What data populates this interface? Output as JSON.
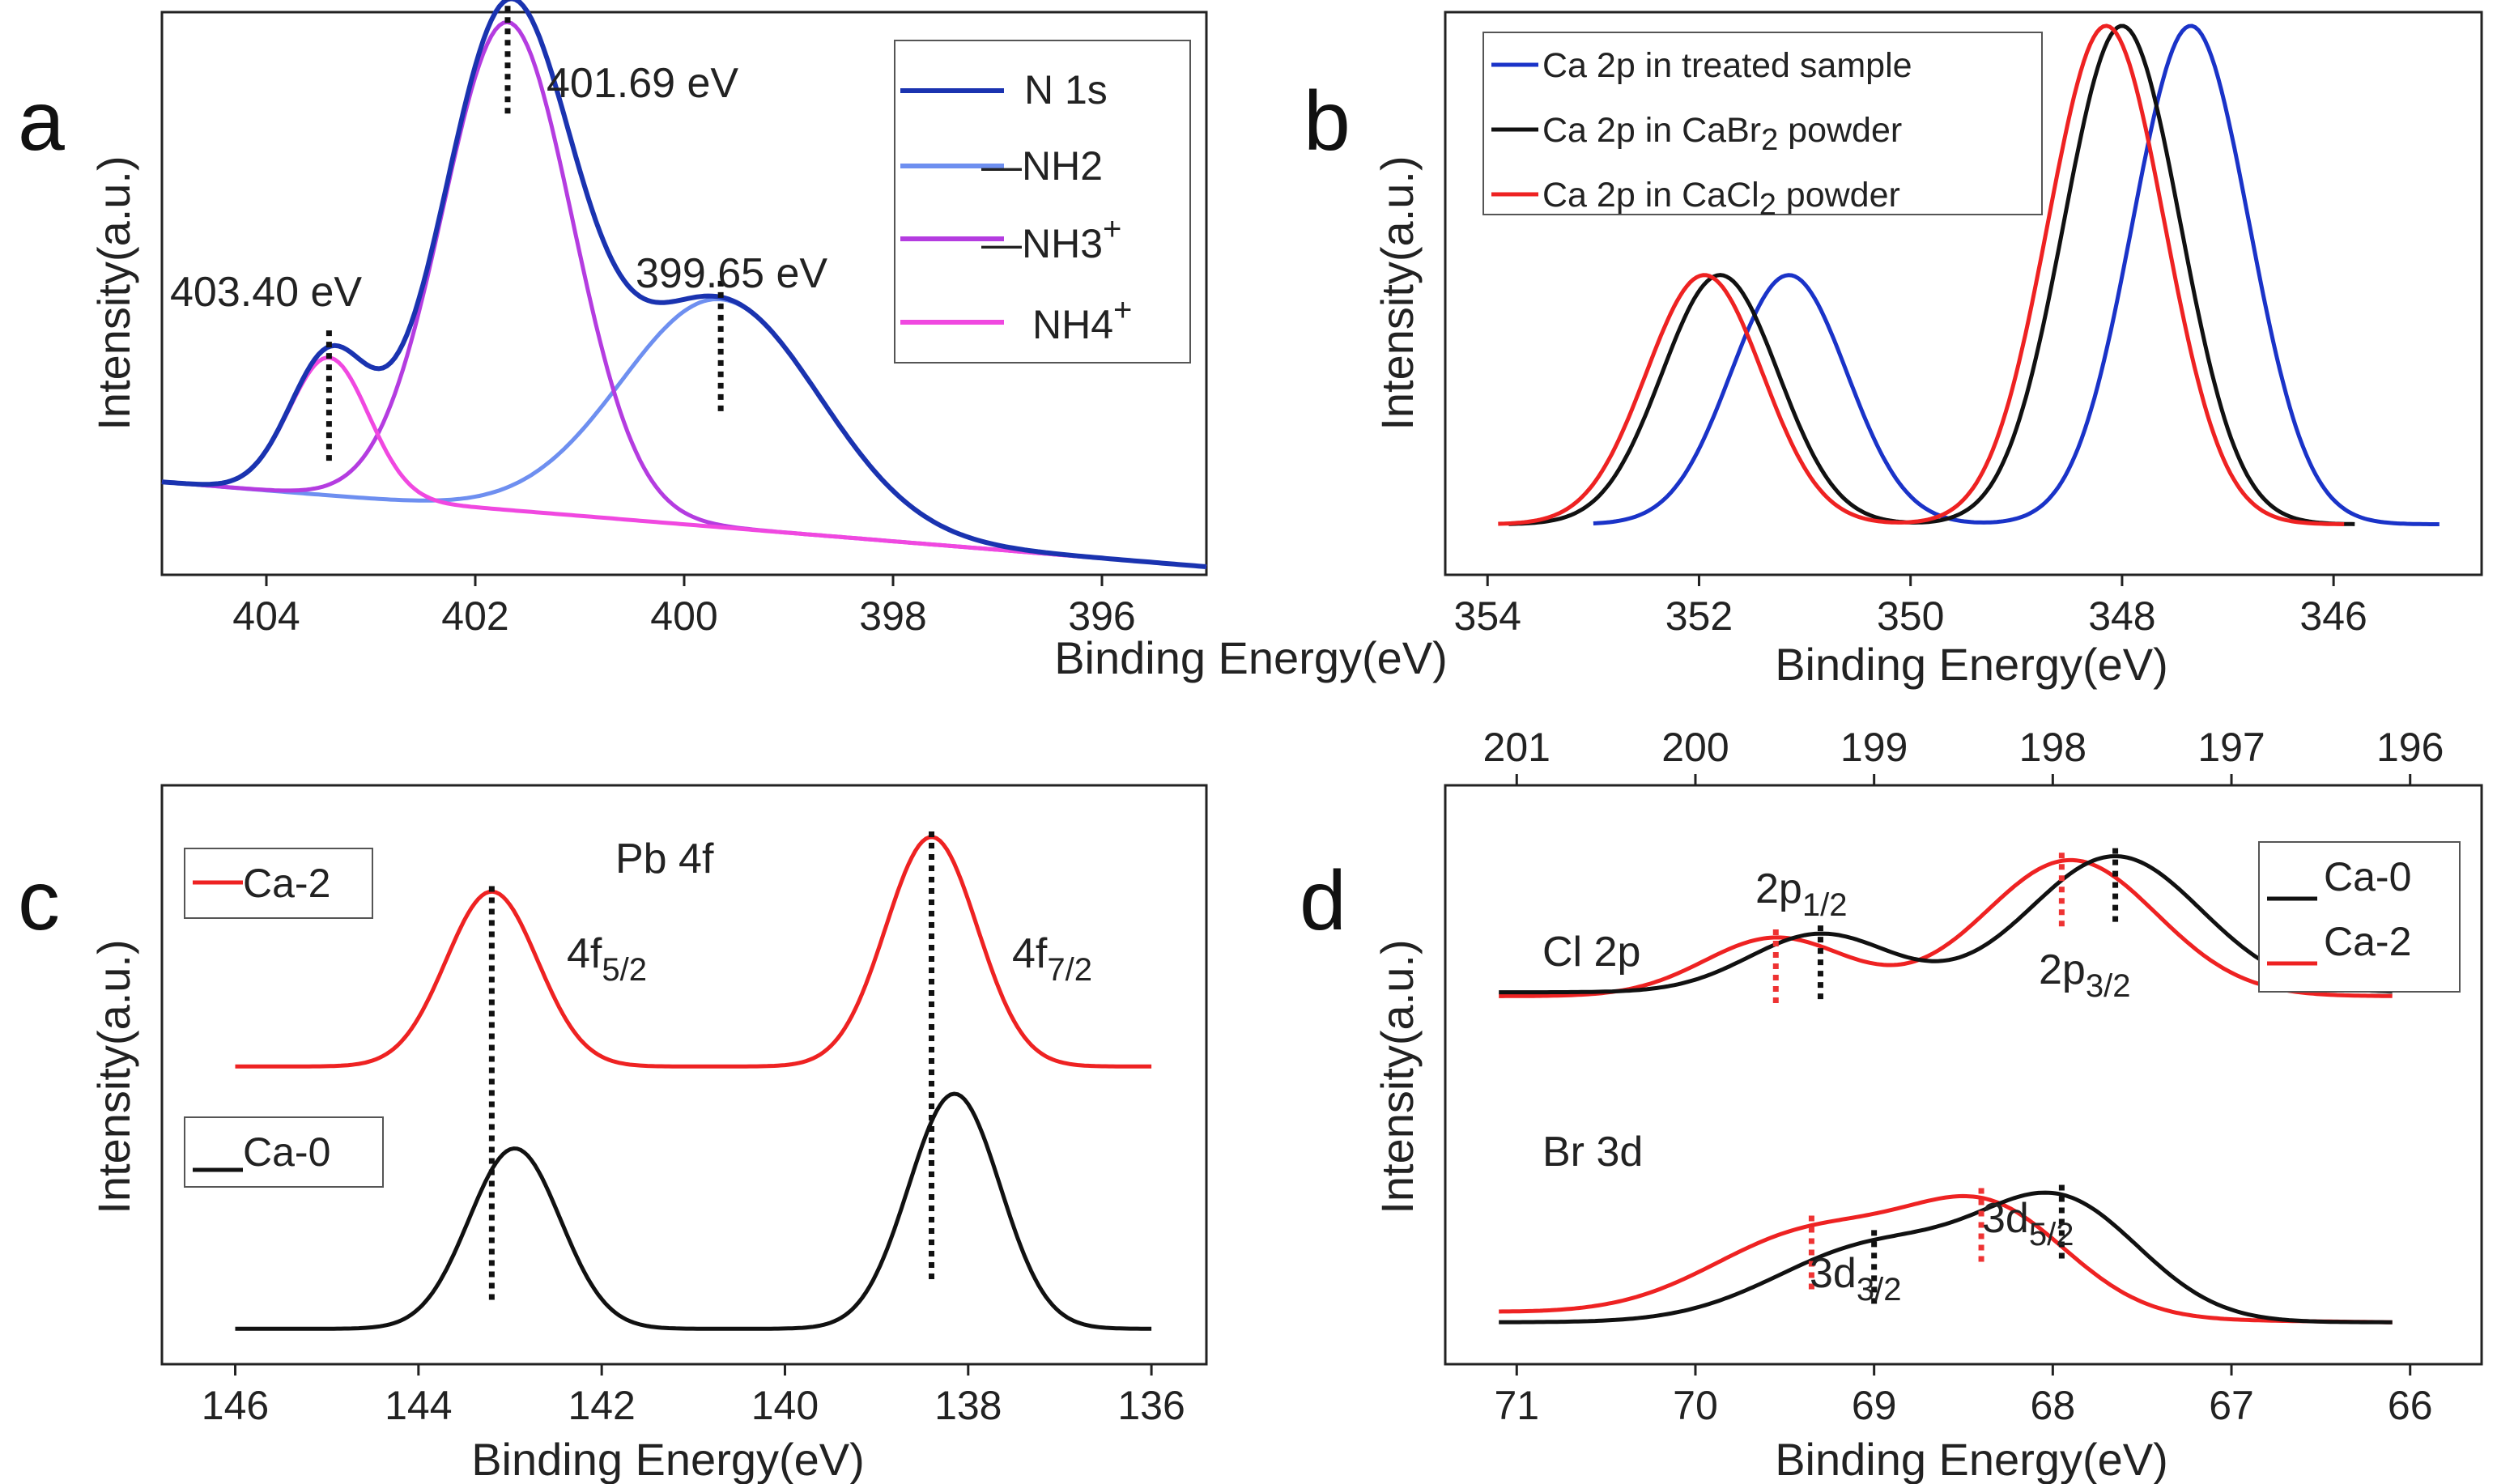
{
  "chart_data": [
    {
      "panel": "a",
      "type": "line",
      "xlabel": "Binding Energy(eV)",
      "ylabel": "Intensity(a.u.)",
      "xlim": [
        405,
        395
      ],
      "xticks": [
        404,
        402,
        400,
        398,
        396
      ],
      "legend_position": "top-right",
      "legend": [
        "N 1s",
        "—NH2",
        "—NH3+",
        "NH4+"
      ],
      "annotations": [
        {
          "text": "401.69 eV",
          "x": 401.69
        },
        {
          "text": "403.40 eV",
          "x": 403.4
        },
        {
          "text": "399.65 eV",
          "x": 399.65
        }
      ],
      "series": [
        {
          "name": "N 1s",
          "color": "#1a33b0",
          "peaks": [
            {
              "center": 403.4,
              "height": 0.26,
              "sigma": 0.38
            },
            {
              "center": 401.69,
              "height": 0.92,
              "sigma": 0.62
            },
            {
              "center": 399.65,
              "height": 0.43,
              "sigma": 0.95
            }
          ],
          "baseline": [
            0.16,
            0.0
          ]
        },
        {
          "name": "—NH2",
          "color": "#6e8ff0",
          "peaks": [
            {
              "center": 399.65,
              "height": 0.43,
              "sigma": 0.95
            }
          ],
          "baseline": [
            0.16,
            0.0
          ]
        },
        {
          "name": "—NH3+",
          "color": "#b43ce0",
          "peaks": [
            {
              "center": 401.69,
              "height": 0.92,
              "sigma": 0.62
            }
          ],
          "baseline": [
            0.16,
            0.0
          ]
        },
        {
          "name": "NH4+",
          "color": "#f048e0",
          "peaks": [
            {
              "center": 403.4,
              "height": 0.26,
              "sigma": 0.38
            }
          ],
          "baseline": [
            0.16,
            0.0
          ]
        }
      ]
    },
    {
      "panel": "b",
      "type": "line",
      "xlabel": "Binding Energy(eV)",
      "ylabel": "Intensity(a.u.)",
      "xlim": [
        354.4,
        344.6
      ],
      "xticks": [
        354,
        352,
        350,
        348,
        346
      ],
      "legend_position": "top-left",
      "legend": [
        {
          "color": "#1a33c8",
          "parts": [
            {
              "t": "Ca 2p in treated sample"
            }
          ]
        },
        {
          "color": "#111111",
          "parts": [
            {
              "t": "Ca 2p in CaBr"
            },
            {
              "t": "2",
              "sub": true
            },
            {
              "t": " powder"
            }
          ]
        },
        {
          "color": "#ee2222",
          "parts": [
            {
              "t": "Ca 2p in CaCl"
            },
            {
              "t": "2",
              "sub": true
            },
            {
              "t": " powder"
            }
          ]
        }
      ],
      "series": [
        {
          "name": "Ca 2p in treated sample",
          "color": "#1a33c8",
          "x_range": [
            353.0,
            345.0
          ],
          "peaks": [
            {
              "center": 351.15,
              "height": 0.47,
              "sigma": 0.55
            },
            {
              "center": 347.35,
              "height": 0.94,
              "sigma": 0.55
            }
          ],
          "baseline": [
            0.08,
            0.08
          ]
        },
        {
          "name": "Ca 2p in CaBr2 powder",
          "color": "#111111",
          "x_range": [
            353.8,
            345.8
          ],
          "peaks": [
            {
              "center": 351.8,
              "height": 0.47,
              "sigma": 0.55
            },
            {
              "center": 348.0,
              "height": 0.94,
              "sigma": 0.55
            }
          ],
          "baseline": [
            0.08,
            0.08
          ]
        },
        {
          "name": "Ca 2p in CaCl2 powder",
          "color": "#ee2222",
          "x_range": [
            353.9,
            345.9
          ],
          "peaks": [
            {
              "center": 351.95,
              "height": 0.47,
              "sigma": 0.55
            },
            {
              "center": 348.15,
              "height": 0.94,
              "sigma": 0.55
            }
          ],
          "baseline": [
            0.08,
            0.08
          ]
        }
      ]
    },
    {
      "panel": "c",
      "type": "line",
      "title": "Pb 4f",
      "xlabel": "Binding Energy(eV)",
      "ylabel": "Intensity(a.u.)",
      "xlim": [
        146.8,
        135.4
      ],
      "xticks": [
        146,
        144,
        142,
        140,
        138,
        136
      ],
      "legend_position": "left",
      "legend": [
        "Ca-2",
        "Ca-0"
      ],
      "annotations": [
        {
          "text": "4f",
          "sub": "5/2",
          "x": 143.1
        },
        {
          "text": "4f",
          "sub": "7/2",
          "x": 138.4
        }
      ],
      "series": [
        {
          "name": "Ca-2",
          "color": "#ee2222",
          "x_range": [
            146,
            136
          ],
          "peaks": [
            {
              "center": 143.2,
              "height": 0.32,
              "sigma": 0.5
            },
            {
              "center": 138.4,
              "height": 0.42,
              "sigma": 0.5
            }
          ],
          "baseline": [
            0.53,
            0.53
          ]
        },
        {
          "name": "Ca-0",
          "color": "#111111",
          "x_range": [
            146,
            136
          ],
          "peaks": [
            {
              "center": 142.95,
              "height": 0.33,
              "sigma": 0.5
            },
            {
              "center": 138.15,
              "height": 0.43,
              "sigma": 0.5
            }
          ],
          "baseline": [
            0.05,
            0.05
          ]
        }
      ]
    },
    {
      "panel": "d",
      "type": "line",
      "xlabel": "Binding Energy(eV)",
      "ylabel": "Intensity(a.u.)",
      "xlim": [
        71.4,
        65.6
      ],
      "xticks": [
        71,
        70,
        69,
        68,
        67,
        66
      ],
      "x2lim": [
        201.4,
        195.6
      ],
      "x2ticks": [
        201,
        200,
        199,
        198,
        197,
        196
      ],
      "legend_position": "top-right",
      "legend": [
        "Ca-0",
        "Ca-2"
      ],
      "labels": [
        "Cl 2p",
        "Br 3d"
      ],
      "annotations": [
        {
          "text": "2p",
          "sub": "1/2",
          "x": 199.4
        },
        {
          "text": "2p",
          "sub": "3/2",
          "x": 197.7
        },
        {
          "text": "3d",
          "sub": "3/2",
          "x": 69.0
        },
        {
          "text": "3d",
          "sub": "5/2",
          "x": 68.0
        }
      ],
      "series": [
        {
          "name": "Ca-0 Cl 2p",
          "color": "#111111",
          "x_range": [
            201.1,
            196.1
          ],
          "peaks": [
            {
              "center": 199.3,
              "height": 0.15,
              "sigma": 0.4
            },
            {
              "center": 197.65,
              "height": 0.35,
              "sigma": 0.48
            }
          ],
          "baseline": [
            0.53,
            0.53
          ]
        },
        {
          "name": "Ca-2 Cl 2p",
          "color": "#ee2222",
          "x_range": [
            201.1,
            196.1
          ],
          "peaks": [
            {
              "center": 199.55,
              "height": 0.15,
              "sigma": 0.4
            },
            {
              "center": 197.9,
              "height": 0.35,
              "sigma": 0.48
            }
          ],
          "baseline": [
            0.52,
            0.52
          ]
        },
        {
          "name": "Ca-0 Br 3d",
          "color": "#111111",
          "x_range": [
            71.1,
            66.1
          ],
          "peaks": [
            {
              "center": 69.0,
              "height": 0.22,
              "sigma": 0.55
            },
            {
              "center": 67.95,
              "height": 0.34,
              "sigma": 0.45
            }
          ],
          "baseline": [
            0.04,
            0.04
          ]
        },
        {
          "name": "Ca-2 Br 3d",
          "color": "#ee2222",
          "x_range": [
            71.1,
            66.1
          ],
          "peaks": [
            {
              "center": 69.35,
              "height": 0.24,
              "sigma": 0.55
            },
            {
              "center": 68.35,
              "height": 0.3,
              "sigma": 0.45
            }
          ],
          "baseline": [
            0.07,
            0.04
          ]
        }
      ]
    }
  ],
  "text": {
    "a": {
      "panel_label": "a",
      "xlabel": "Binding Energy(eV)",
      "ylabel": "Intensity(a.u.)",
      "ann1": "401.69 eV",
      "ann2": "403.40 eV",
      "ann3": "399.65 eV",
      "leg1": "N 1s",
      "leg2": "—NH2",
      "leg3": "—NH3",
      "leg3sup": "+",
      "leg4": "NH4",
      "leg4sup": "+"
    },
    "b": {
      "panel_label": "b",
      "xlabel": "Binding Energy(eV)",
      "ylabel": "Intensity(a.u.)"
    },
    "c": {
      "panel_label": "c",
      "xlabel": "Binding Energy(eV)",
      "ylabel": "Intensity(a.u.)",
      "title": "Pb 4f",
      "leg1": "Ca-2",
      "leg2": "Ca-0",
      "ann1": "4f",
      "ann1sub": "5/2",
      "ann2": "4f",
      "ann2sub": "7/2"
    },
    "d": {
      "panel_label": "d",
      "xlabel": "Binding Energy(eV)",
      "ylabel": "Intensity(a.u.)",
      "lab1": "Cl 2p",
      "lab2": "Br 3d",
      "leg1": "Ca-0",
      "leg2": "Ca-2",
      "ann1": "2p",
      "ann1sub": "1/2",
      "ann2": "2p",
      "ann2sub": "3/2",
      "ann3": "3d",
      "ann3sub": "3/2",
      "ann4": "3d",
      "ann4sub": "5/2"
    }
  }
}
